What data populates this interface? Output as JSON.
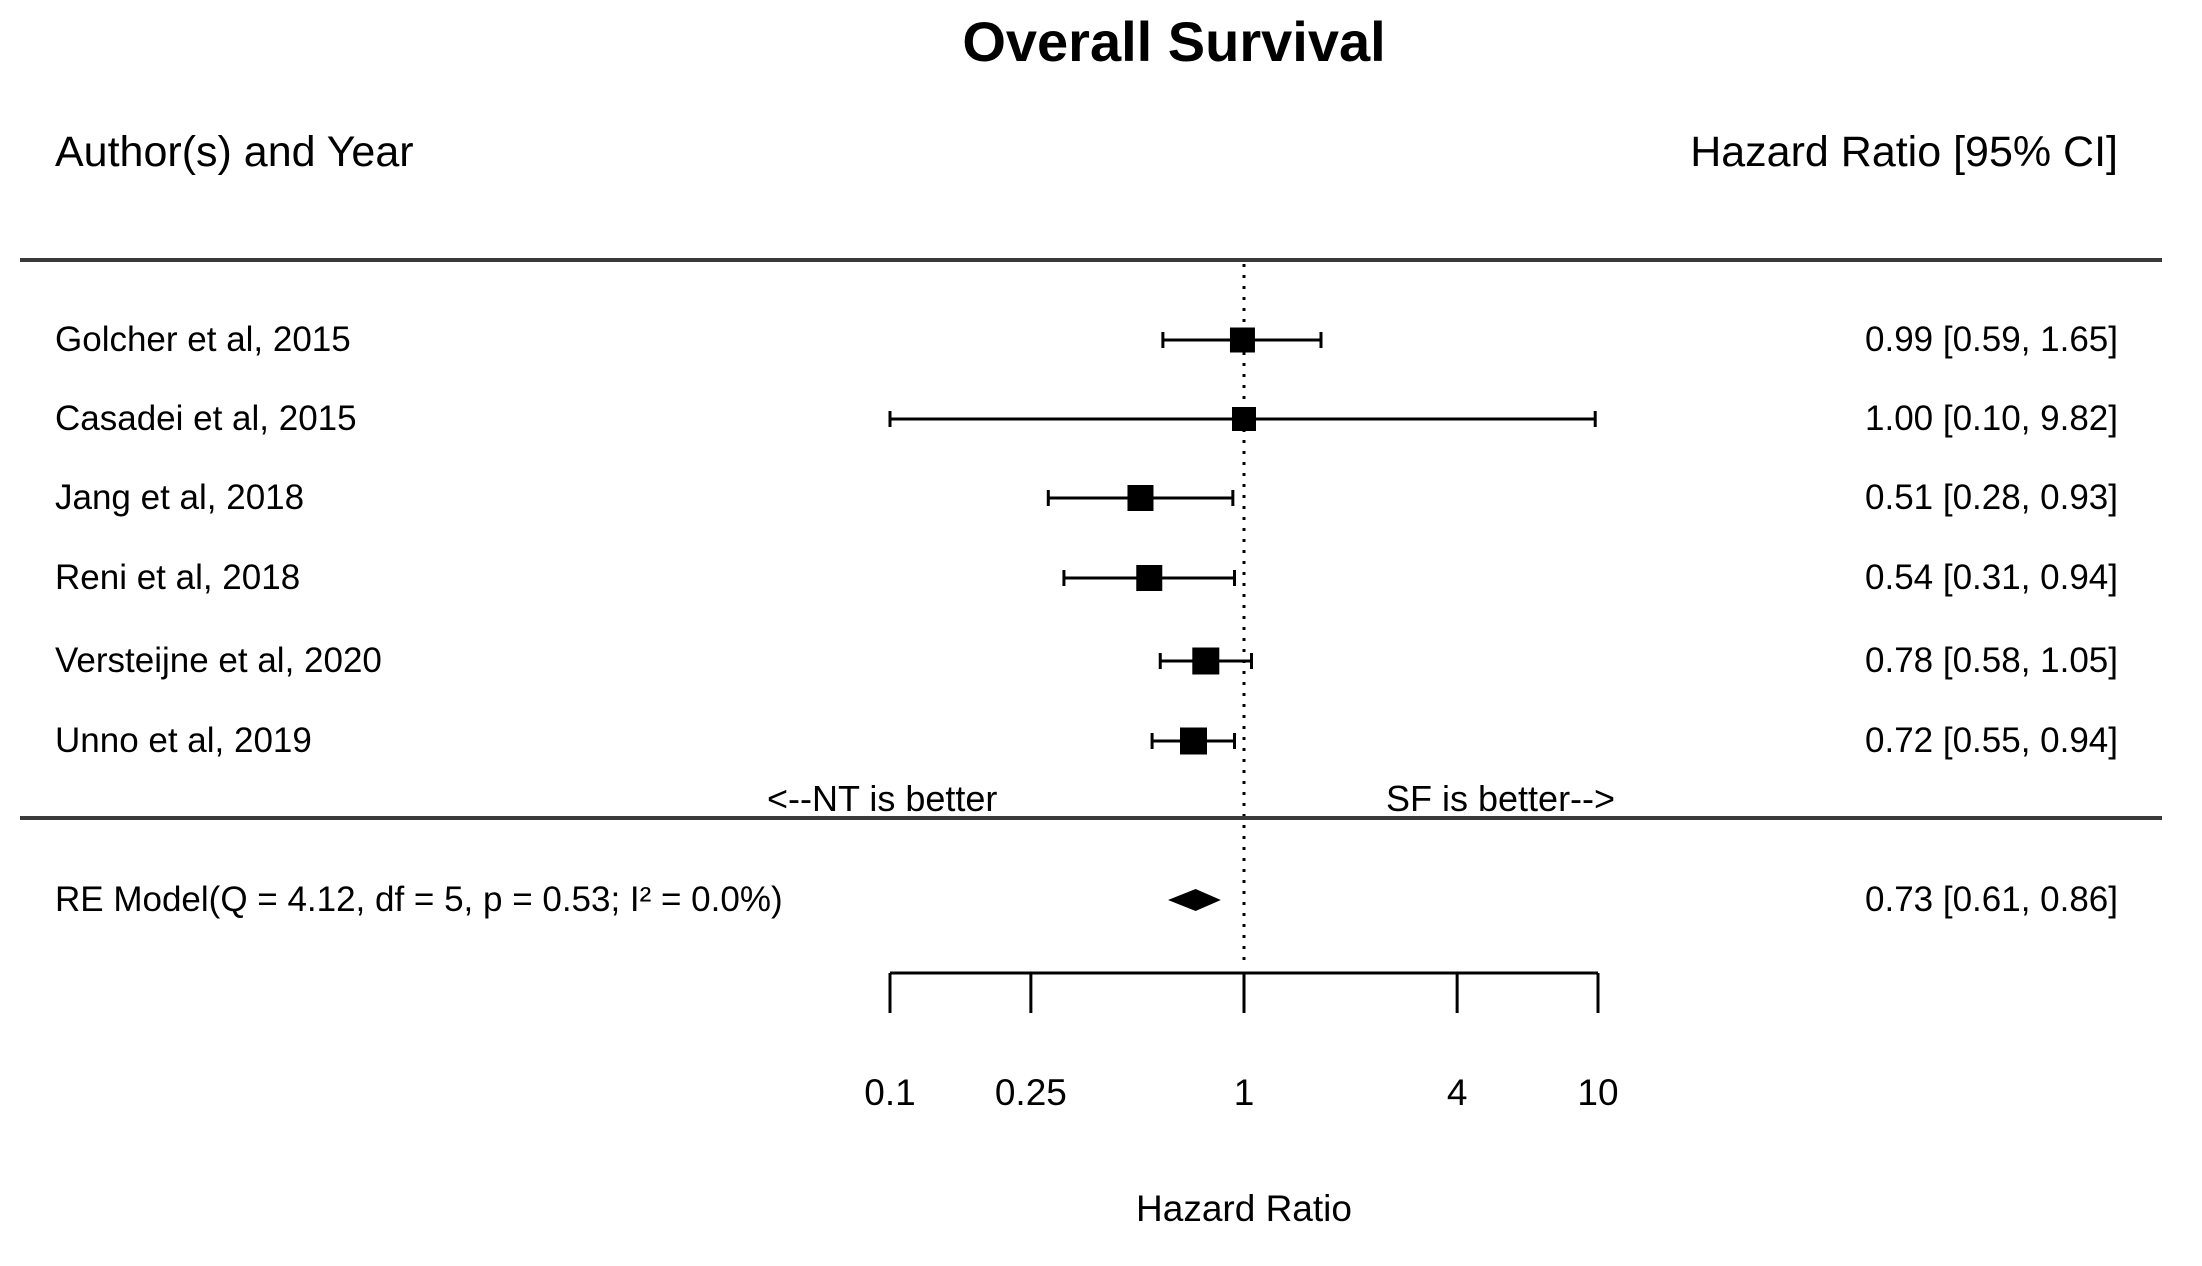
{
  "title": "Overall Survival",
  "columns": {
    "left_header": "Author(s) and Year",
    "right_header": "Hazard Ratio [95% CI]"
  },
  "direction_labels": {
    "left": "<--NT is better",
    "right": "SF is better-->"
  },
  "colors": {
    "foreground": "#000000",
    "rule": "#3a3a3a",
    "background": "#ffffff"
  },
  "chart_data": {
    "type": "forest",
    "x_scale": "log10",
    "x_ticks": [
      "0.1",
      "0.25",
      "1",
      "4",
      "10"
    ],
    "x_tick_values": [
      0.1,
      0.25,
      1,
      4,
      10
    ],
    "x_range": [
      0.1,
      10
    ],
    "reference_line": 1,
    "xlabel": "Hazard Ratio",
    "studies": [
      {
        "label": "Golcher et al, 2015",
        "hr": 0.99,
        "ci_low": 0.59,
        "ci_high": 1.65,
        "ci_text": "0.99 [0.59, 1.65]",
        "marker_size": 25
      },
      {
        "label": "Casadei et al, 2015",
        "hr": 1.0,
        "ci_low": 0.1,
        "ci_high": 9.82,
        "ci_text": "1.00 [0.10, 9.82]",
        "marker_size": 24
      },
      {
        "label": "Jang et al, 2018",
        "hr": 0.51,
        "ci_low": 0.28,
        "ci_high": 0.93,
        "ci_text": "0.51 [0.28, 0.93]",
        "marker_size": 26
      },
      {
        "label": "Reni et al, 2018",
        "hr": 0.54,
        "ci_low": 0.31,
        "ci_high": 0.94,
        "ci_text": "0.54 [0.31, 0.94]",
        "marker_size": 26
      },
      {
        "label": "Versteijne et al, 2020",
        "hr": 0.78,
        "ci_low": 0.58,
        "ci_high": 1.05,
        "ci_text": "0.78 [0.58, 1.05]",
        "marker_size": 27
      },
      {
        "label": "Unno et al, 2019",
        "hr": 0.72,
        "ci_low": 0.55,
        "ci_high": 0.94,
        "ci_text": "0.72 [0.55, 0.94]",
        "marker_size": 27
      }
    ],
    "summary": {
      "label": "RE Model(Q = 4.12, df = 5, p = 0.53; I² = 0.0%)",
      "hr": 0.73,
      "ci_low": 0.61,
      "ci_high": 0.86,
      "ci_text": "0.73 [0.61, 0.86]"
    }
  }
}
